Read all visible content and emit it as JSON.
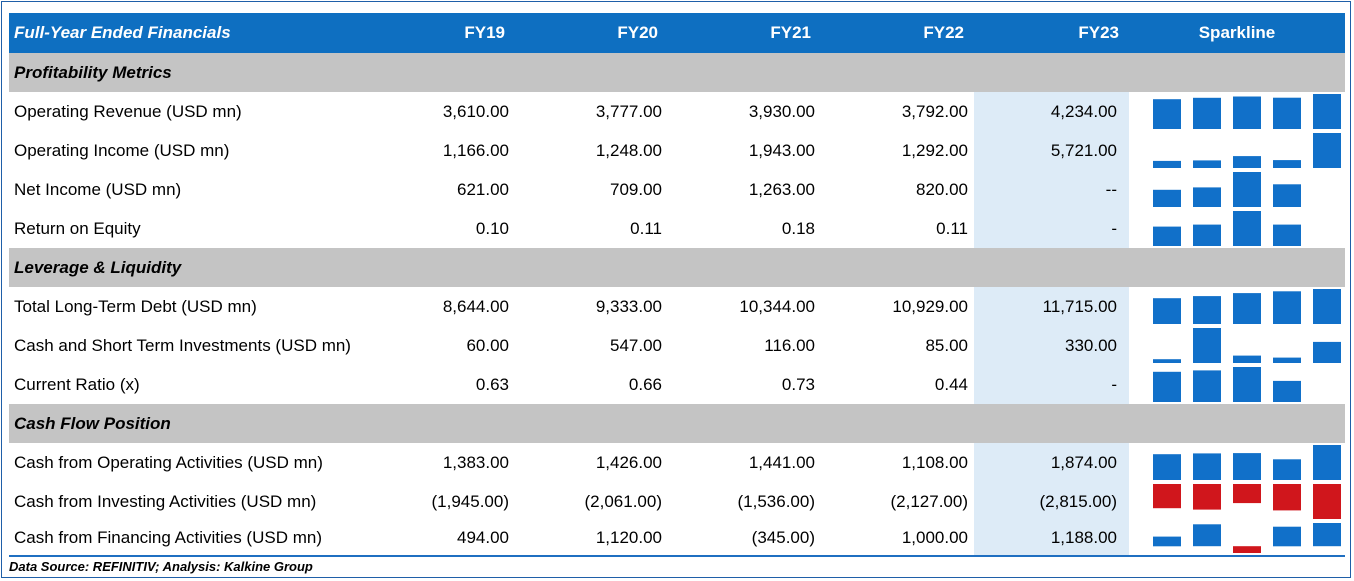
{
  "header": {
    "title": "Full-Year Ended Financials",
    "years": [
      "FY19",
      "FY20",
      "FY21",
      "FY22",
      "FY23"
    ],
    "spark": "Sparkline"
  },
  "colors": {
    "header_bg": "#0e6fc1",
    "section_bg": "#c4c4c4",
    "fy23_bg": "#ddebf7",
    "bar_pos": "#1170c9",
    "bar_neg": "#d0161c"
  },
  "sections": [
    {
      "name": "Profitability Metrics",
      "rows": [
        {
          "label": "Operating Revenue (USD mn)",
          "display": [
            "3,610.00",
            "3,777.00",
            "3,930.00",
            "3,792.00",
            "4,234.00"
          ],
          "values": [
            3610,
            3777,
            3930,
            3792,
            4234
          ]
        },
        {
          "label": "Operating Income (USD mn)",
          "display": [
            "1,166.00",
            "1,248.00",
            "1,943.00",
            "1,292.00",
            "5,721.00"
          ],
          "values": [
            1166,
            1248,
            1943,
            1292,
            5721
          ]
        },
        {
          "label": "Net Income (USD mn)",
          "display": [
            "621.00",
            "709.00",
            "1,263.00",
            "820.00",
            "--"
          ],
          "values": [
            621,
            709,
            1263,
            820,
            null
          ]
        },
        {
          "label": "Return on Equity",
          "display": [
            "0.10",
            "0.11",
            "0.18",
            "0.11",
            "-"
          ],
          "values": [
            0.1,
            0.11,
            0.18,
            0.11,
            null
          ]
        }
      ]
    },
    {
      "name": "Leverage & Liquidity",
      "rows": [
        {
          "label": "Total Long-Term Debt (USD mn)",
          "display": [
            "8,644.00",
            "9,333.00",
            "10,344.00",
            "10,929.00",
            "11,715.00"
          ],
          "values": [
            8644,
            9333,
            10344,
            10929,
            11715
          ]
        },
        {
          "label": "Cash and Short Term Investments (USD mn)",
          "display": [
            "60.00",
            "547.00",
            "116.00",
            "85.00",
            "330.00"
          ],
          "values": [
            60,
            547,
            116,
            85,
            330
          ]
        },
        {
          "label": "Current Ratio (x)",
          "display": [
            "0.63",
            "0.66",
            "0.73",
            "0.44",
            "-"
          ],
          "values": [
            0.63,
            0.66,
            0.73,
            0.44,
            null
          ]
        }
      ]
    },
    {
      "name": "Cash Flow Position",
      "rows": [
        {
          "label": "Cash from Operating Activities (USD mn)",
          "display": [
            "1,383.00",
            "1,426.00",
            "1,441.00",
            "1,108.00",
            "1,874.00"
          ],
          "values": [
            1383,
            1426,
            1441,
            1108,
            1874
          ]
        },
        {
          "label": "Cash from Investing Activities (USD mn)",
          "display": [
            "(1,945.00)",
            "(2,061.00)",
            "(1,536.00)",
            "(2,127.00)",
            "(2,815.00)"
          ],
          "values": [
            -1945,
            -2061,
            -1536,
            -2127,
            -2815
          ]
        },
        {
          "label": "Cash from Financing Activities (USD mn)",
          "display": [
            "494.00",
            "1,120.00",
            "(345.00)",
            "1,000.00",
            "1,188.00"
          ],
          "values": [
            494,
            1120,
            -345,
            1000,
            1188
          ]
        }
      ]
    }
  ],
  "source": "Data Source: REFINITIV; Analysis: Kalkine Group",
  "chart_data": {
    "type": "table",
    "title": "Full-Year Ended Financials",
    "columns": [
      "FY19",
      "FY20",
      "FY21",
      "FY22",
      "FY23"
    ],
    "rows": [
      {
        "metric": "Operating Revenue (USD mn)",
        "values": [
          3610,
          3777,
          3930,
          3792,
          4234
        ]
      },
      {
        "metric": "Operating Income (USD mn)",
        "values": [
          1166,
          1248,
          1943,
          1292,
          5721
        ]
      },
      {
        "metric": "Net Income (USD mn)",
        "values": [
          621,
          709,
          1263,
          820,
          null
        ]
      },
      {
        "metric": "Return on Equity",
        "values": [
          0.1,
          0.11,
          0.18,
          0.11,
          null
        ]
      },
      {
        "metric": "Total Long-Term Debt (USD mn)",
        "values": [
          8644,
          9333,
          10344,
          10929,
          11715
        ]
      },
      {
        "metric": "Cash and Short Term Investments (USD mn)",
        "values": [
          60,
          547,
          116,
          85,
          330
        ]
      },
      {
        "metric": "Current Ratio (x)",
        "values": [
          0.63,
          0.66,
          0.73,
          0.44,
          null
        ]
      },
      {
        "metric": "Cash from Operating Activities (USD mn)",
        "values": [
          1383,
          1426,
          1441,
          1108,
          1874
        ]
      },
      {
        "metric": "Cash from Investing Activities (USD mn)",
        "values": [
          -1945,
          -2061,
          -1536,
          -2127,
          -2815
        ]
      },
      {
        "metric": "Cash from Financing Activities (USD mn)",
        "values": [
          494,
          1120,
          -345,
          1000,
          1188
        ]
      }
    ]
  }
}
